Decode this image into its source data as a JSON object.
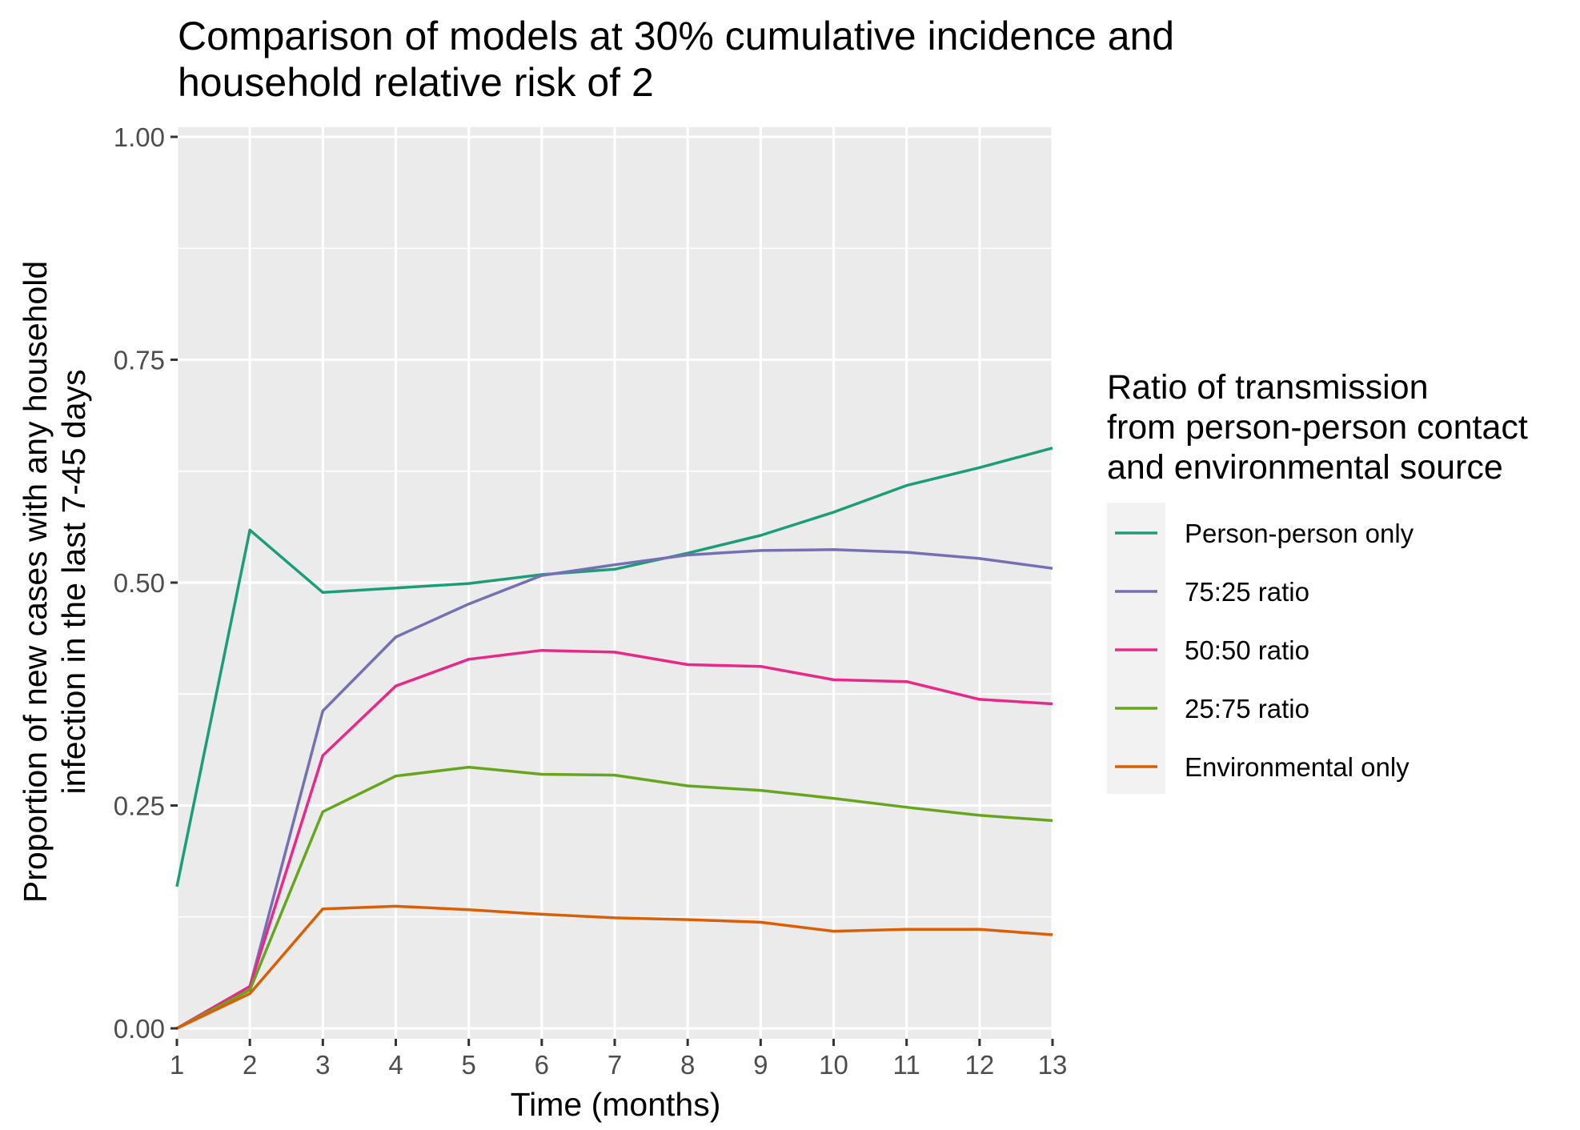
{
  "chart_data": {
    "type": "line",
    "title": [
      "Comparison of models at 30% cumulative incidence and",
      "household relative risk of 2"
    ],
    "xlabel": "Time (months)",
    "ylabel": [
      "Proportion of new cases with any household",
      "infection in the last 7-45 days"
    ],
    "x": [
      1,
      2,
      3,
      4,
      5,
      6,
      7,
      8,
      9,
      10,
      11,
      12,
      13
    ],
    "x_ticks": [
      "1",
      "2",
      "3",
      "4",
      "5",
      "6",
      "7",
      "8",
      "9",
      "10",
      "11",
      "12",
      "13"
    ],
    "xlim": [
      1,
      13
    ],
    "ylim": [
      0,
      1
    ],
    "y_ticks": [
      {
        "value": 0,
        "label": "0.00"
      },
      {
        "value": 0.25,
        "label": "0.25"
      },
      {
        "value": 0.5,
        "label": "0.50"
      },
      {
        "value": 0.75,
        "label": "0.75"
      },
      {
        "value": 1,
        "label": "1.00"
      }
    ],
    "grid": true,
    "legend": {
      "title": [
        "Ratio of transmission",
        "from person-person contact",
        "and environmental source"
      ],
      "placement": "right"
    },
    "series": [
      {
        "name": "Person-person only",
        "color": "#1b9e77",
        "values": [
          0.159,
          0.559,
          0.489,
          0.494,
          0.499,
          0.509,
          0.515,
          0.533,
          0.553,
          0.579,
          0.609,
          0.629,
          0.651
        ]
      },
      {
        "name": "75:25 ratio",
        "color": "#7570b3",
        "values": [
          0,
          0.047,
          0.356,
          0.439,
          0.476,
          0.508,
          0.52,
          0.531,
          0.536,
          0.537,
          0.534,
          0.527,
          0.516
        ]
      },
      {
        "name": "50:50 ratio",
        "color": "#e7298a",
        "values": [
          0,
          0.047,
          0.306,
          0.384,
          0.414,
          0.424,
          0.422,
          0.408,
          0.406,
          0.391,
          0.389,
          0.369,
          0.364
        ]
      },
      {
        "name": "25:75 ratio",
        "color": "#66a61e",
        "values": [
          0,
          0.043,
          0.243,
          0.283,
          0.293,
          0.285,
          0.284,
          0.272,
          0.267,
          0.258,
          0.248,
          0.239,
          0.233
        ]
      },
      {
        "name": "Environmental only",
        "color": "#d95f02",
        "values": [
          0,
          0.039,
          0.134,
          0.137,
          0.133,
          0.128,
          0.124,
          0.122,
          0.119,
          0.109,
          0.111,
          0.111,
          0.105
        ]
      }
    ]
  }
}
